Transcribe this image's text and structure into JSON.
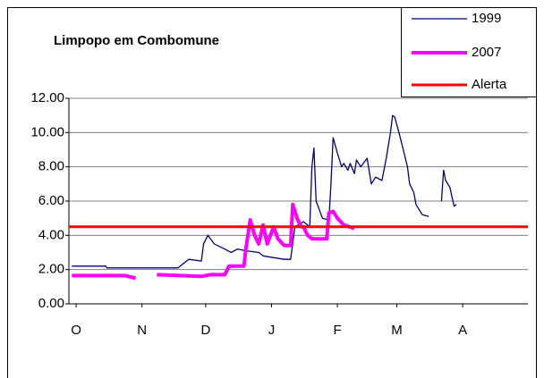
{
  "chart_data": {
    "type": "line",
    "title": "Limpopo em Combomune",
    "xlim": [
      -3.4,
      212.7
    ],
    "xticks": [
      {
        "value": 0,
        "label": "O"
      },
      {
        "value": 31,
        "label": "N"
      },
      {
        "value": 61,
        "label": "D"
      },
      {
        "value": 92,
        "label": "J"
      },
      {
        "value": 123,
        "label": "F"
      },
      {
        "value": 151,
        "label": "M"
      },
      {
        "value": 182,
        "label": "A"
      }
    ],
    "ylim": [
      0,
      12
    ],
    "yticks": [
      {
        "value": 0,
        "label": "0.00"
      },
      {
        "value": 2,
        "label": "2.00"
      },
      {
        "value": 4,
        "label": "4.00"
      },
      {
        "value": 6,
        "label": "6.00"
      },
      {
        "value": 8,
        "label": "8.00"
      },
      {
        "value": 10,
        "label": "10.00"
      },
      {
        "value": 12,
        "label": "12.00"
      }
    ],
    "grid": true,
    "legend": "top-right",
    "series": [
      {
        "name": "1999",
        "color": "#000080",
        "width": 1.3,
        "x": [
          -2,
          14,
          14.5,
          48,
          50,
          53,
          59,
          60,
          62,
          65,
          70,
          73,
          76,
          80,
          86,
          88,
          93,
          98,
          101,
          103,
          107,
          110,
          111,
          112,
          113,
          116,
          119,
          120,
          121,
          123,
          125,
          126,
          128,
          129,
          131,
          132,
          134,
          137,
          139,
          141,
          144,
          146,
          148,
          149,
          150,
          152,
          154,
          156,
          157,
          159,
          160,
          163,
          166,
          169,
          172,
          173,
          174,
          176,
          177,
          178,
          179
        ],
        "values": [
          2.2,
          2.2,
          2.1,
          2.1,
          2.3,
          2.6,
          2.5,
          3.5,
          4.0,
          3.5,
          3.2,
          3.0,
          3.2,
          3.1,
          3.0,
          2.8,
          2.7,
          2.6,
          2.6,
          4.5,
          4.8,
          4.5,
          8.0,
          9.1,
          6.0,
          5.0,
          4.9,
          7.0,
          9.7,
          8.8,
          8.0,
          8.2,
          7.8,
          8.2,
          7.6,
          8.4,
          8.0,
          8.5,
          7.0,
          7.4,
          7.2,
          8.5,
          10.0,
          11.0,
          10.9,
          10.0,
          9.0,
          8.0,
          7.0,
          6.5,
          5.8,
          5.2,
          5.1,
          null,
          6.0,
          7.8,
          7.2,
          6.8,
          6.2,
          5.7,
          5.8
        ]
      },
      {
        "name": "2007",
        "color": "#ff00ff",
        "width": 4,
        "x": [
          -2,
          23,
          28,
          33,
          38,
          59,
          63,
          70,
          72,
          79,
          80,
          82,
          84,
          86,
          88,
          90,
          93,
          95,
          98,
          101,
          102,
          104,
          106,
          107,
          109,
          111,
          118,
          119,
          121,
          123,
          126,
          131
        ],
        "values": [
          1.65,
          1.65,
          1.5,
          null,
          1.7,
          1.6,
          1.7,
          1.7,
          2.2,
          2.2,
          3.3,
          4.9,
          4.0,
          3.5,
          4.6,
          3.5,
          4.5,
          3.8,
          3.4,
          3.4,
          5.8,
          5.0,
          4.5,
          4.5,
          4.0,
          3.8,
          3.8,
          5.3,
          5.4,
          5.0,
          4.6,
          4.4
        ]
      },
      {
        "name": "Alerta",
        "color": "#ff0000",
        "width": 3,
        "x": [
          -3.4,
          212.7
        ],
        "values": [
          4.5,
          4.5
        ]
      }
    ]
  }
}
